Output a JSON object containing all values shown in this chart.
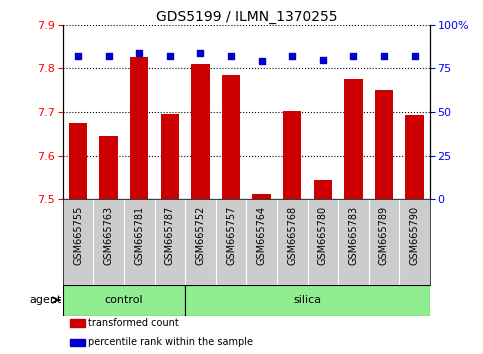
{
  "title": "GDS5199 / ILMN_1370255",
  "samples": [
    "GSM665755",
    "GSM665763",
    "GSM665781",
    "GSM665787",
    "GSM665752",
    "GSM665757",
    "GSM665764",
    "GSM665768",
    "GSM665780",
    "GSM665783",
    "GSM665789",
    "GSM665790"
  ],
  "transformed_counts": [
    7.675,
    7.645,
    7.825,
    7.695,
    7.81,
    7.785,
    7.513,
    7.703,
    7.545,
    7.775,
    7.75,
    7.693
  ],
  "percentile_ranks": [
    82,
    82,
    84,
    82,
    84,
    82,
    79,
    82,
    80,
    82,
    82,
    82
  ],
  "groups": [
    "control",
    "control",
    "control",
    "control",
    "silica",
    "silica",
    "silica",
    "silica",
    "silica",
    "silica",
    "silica",
    "silica"
  ],
  "ylim_left": [
    7.5,
    7.9
  ],
  "ylim_right": [
    0,
    100
  ],
  "yticks_left": [
    7.5,
    7.6,
    7.7,
    7.8,
    7.9
  ],
  "yticks_right": [
    0,
    25,
    50,
    75,
    100
  ],
  "bar_color": "#cc0000",
  "dot_color": "#0000cc",
  "group_color": "#90ee90",
  "xtick_bg_color": "#cccccc",
  "bar_bottom": 7.5,
  "bar_width": 0.6,
  "legend_items": [
    {
      "label": "transformed count",
      "color": "#cc0000"
    },
    {
      "label": "percentile rank within the sample",
      "color": "#0000cc"
    }
  ]
}
